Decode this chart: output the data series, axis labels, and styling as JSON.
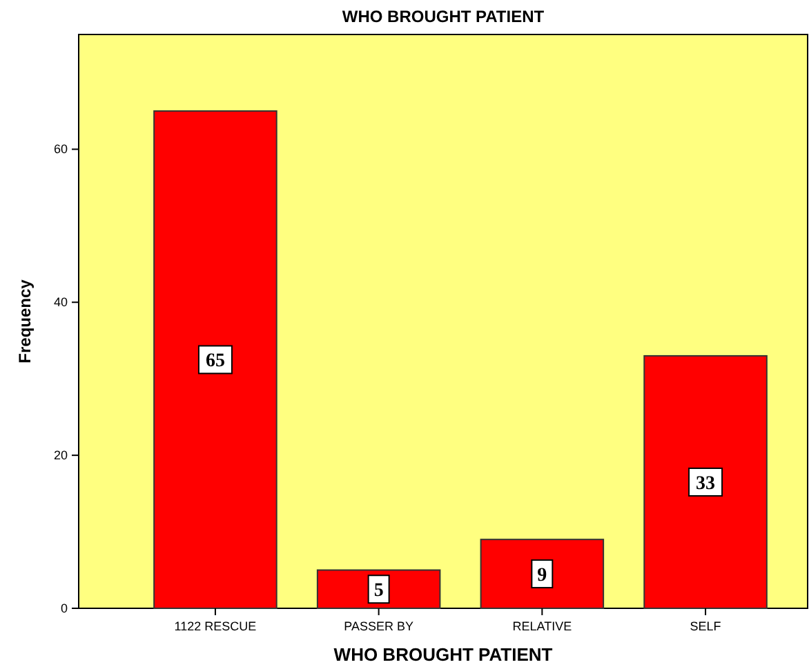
{
  "chart_data": {
    "type": "bar",
    "title": "WHO BROUGHT PATIENT",
    "xlabel": "WHO BROUGHT PATIENT",
    "ylabel": "Frequency",
    "categories": [
      "1122 RESCUE",
      "PASSER BY",
      "RELATIVE",
      "SELF"
    ],
    "values": [
      65,
      5,
      9,
      33
    ],
    "color": "#ff0000",
    "ylim": [
      0,
      75
    ],
    "yticks": [
      0,
      20,
      40,
      60
    ],
    "grid": false,
    "data_labels": true
  }
}
